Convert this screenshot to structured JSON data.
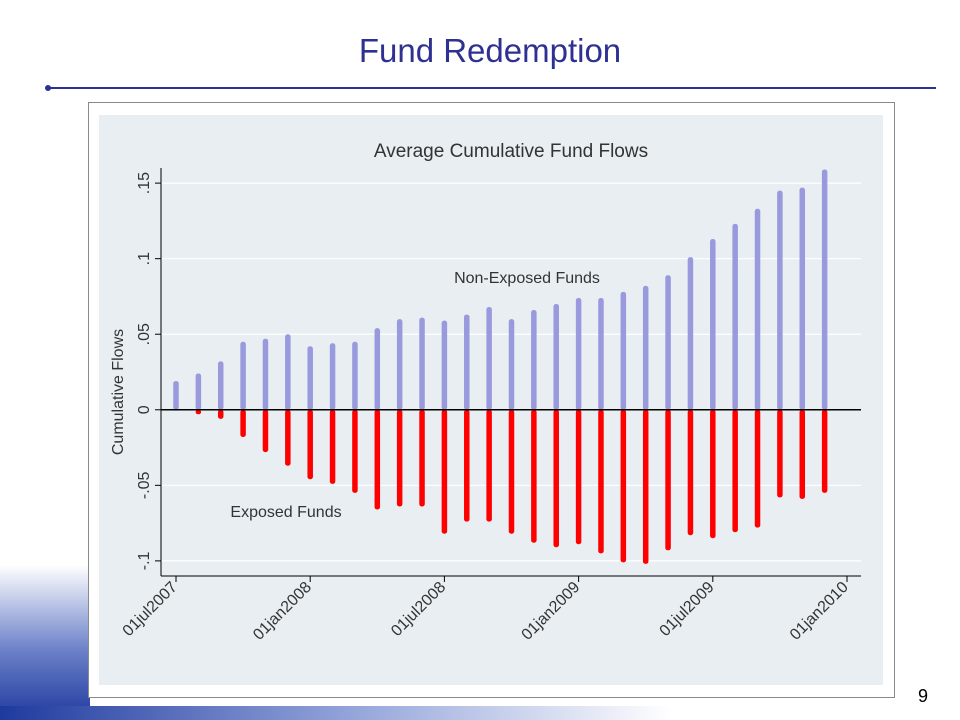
{
  "slide": {
    "title": "Fund Redemption",
    "page_number": "9"
  },
  "colors": {
    "title": "#2e3192",
    "non_exposed": "#9999dd",
    "exposed": "#ff0000",
    "plot_bg": "#e8eef2"
  },
  "chart_data": {
    "type": "bar",
    "title": "Average Cumulative Fund Flows",
    "xlabel": "",
    "ylabel": "Cumulative Flows",
    "ylim": [
      -0.11,
      0.16
    ],
    "yticks": [
      -0.1,
      -0.05,
      0,
      0.05,
      0.1,
      0.15
    ],
    "ytick_labels": [
      "-.1",
      "-.05",
      "0",
      ".05",
      ".1",
      ".15"
    ],
    "x_dates": [
      "2007-07",
      "2007-08",
      "2007-09",
      "2007-10",
      "2007-11",
      "2007-12",
      "2008-01",
      "2008-02",
      "2008-03",
      "2008-04",
      "2008-05",
      "2008-06",
      "2008-07",
      "2008-08",
      "2008-09",
      "2008-10",
      "2008-11",
      "2008-12",
      "2009-01",
      "2009-02",
      "2009-03",
      "2009-04",
      "2009-05",
      "2009-06",
      "2009-07",
      "2009-08",
      "2009-09",
      "2009-10",
      "2009-11",
      "2009-12"
    ],
    "xticks": [
      "01jul2007",
      "01jan2008",
      "01jul2008",
      "01jan2009",
      "01jul2009",
      "01jan2010"
    ],
    "xtick_dates": [
      "2007-07",
      "2008-01",
      "2008-07",
      "2009-01",
      "2009-07",
      "2010-01"
    ],
    "grid": true,
    "series": [
      {
        "name": "Non-Exposed Funds",
        "values": [
          0.019,
          0.024,
          0.032,
          0.045,
          0.047,
          0.05,
          0.042,
          0.044,
          0.045,
          0.054,
          0.06,
          0.061,
          0.059,
          0.063,
          0.068,
          0.06,
          0.066,
          0.07,
          0.074,
          0.074,
          0.078,
          0.082,
          0.089,
          0.101,
          0.113,
          0.123,
          0.133,
          0.145,
          0.147,
          0.159
        ]
      },
      {
        "name": "Exposed Funds",
        "values": [
          0.0,
          -0.003,
          -0.006,
          -0.018,
          -0.028,
          -0.037,
          -0.046,
          -0.049,
          -0.055,
          -0.066,
          -0.064,
          -0.064,
          -0.082,
          -0.074,
          -0.074,
          -0.082,
          -0.088,
          -0.091,
          -0.089,
          -0.095,
          -0.101,
          -0.102,
          -0.093,
          -0.083,
          -0.085,
          -0.081,
          -0.078,
          -0.058,
          -0.059,
          -0.055
        ]
      }
    ]
  }
}
